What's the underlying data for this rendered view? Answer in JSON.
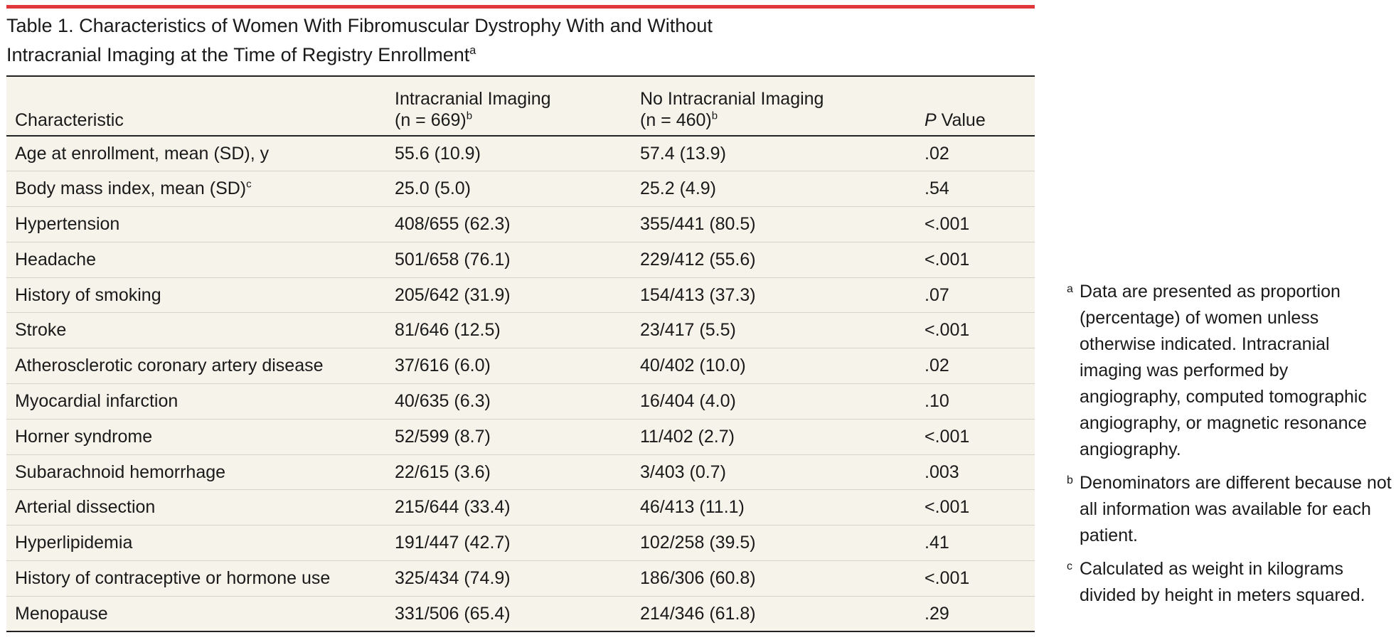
{
  "title": {
    "lines": [
      "Table 1. Characteristics of Women With Fibromuscular Dystrophy With and Without",
      "Intracranial Imaging at the Time of Registry Enrollment"
    ],
    "note": "a"
  },
  "table": {
    "header": {
      "characteristic": "Characteristic",
      "imaging": {
        "lines": [
          "Intracranial Imaging",
          "(n = 669)"
        ],
        "note": "b"
      },
      "no_imaging": {
        "lines": [
          "No Intracranial Imaging",
          "(n = 460)"
        ],
        "note": "b"
      },
      "p_value": {
        "italic": "P",
        "rest": " Value"
      }
    },
    "rows": [
      {
        "cells": [
          "Age at enrollment, mean (SD), y",
          "55.6 (10.9)",
          "57.4 (13.9)",
          ".02"
        ]
      },
      {
        "cells": [
          "Body mass index, mean (SD)",
          "25.0 (5.0)",
          "25.2 (4.9)",
          ".54"
        ],
        "note": "c"
      },
      {
        "cells": [
          "Hypertension",
          "408/655 (62.3)",
          "355/441 (80.5)",
          "<.001"
        ]
      },
      {
        "cells": [
          "Headache",
          "501/658 (76.1)",
          "229/412 (55.6)",
          "<.001"
        ]
      },
      {
        "cells": [
          "History of smoking",
          "205/642 (31.9)",
          "154/413 (37.3)",
          ".07"
        ]
      },
      {
        "cells": [
          "Stroke",
          "81/646 (12.5)",
          "23/417 (5.5)",
          "<.001"
        ]
      },
      {
        "cells": [
          "Atherosclerotic coronary artery disease",
          "37/616 (6.0)",
          "40/402 (10.0)",
          ".02"
        ]
      },
      {
        "cells": [
          "Myocardial infarction",
          "40/635 (6.3)",
          "16/404 (4.0)",
          ".10"
        ]
      },
      {
        "cells": [
          "Horner syndrome",
          "52/599 (8.7)",
          "11/402 (2.7)",
          "<.001"
        ]
      },
      {
        "cells": [
          "Subarachnoid hemorrhage",
          "22/615 (3.6)",
          "3/403 (0.7)",
          ".003"
        ]
      },
      {
        "cells": [
          "Arterial dissection",
          "215/644 (33.4)",
          "46/413 (11.1)",
          "<.001"
        ]
      },
      {
        "cells": [
          "Hyperlipidemia",
          "191/447 (42.7)",
          "102/258 (39.5)",
          ".41"
        ]
      },
      {
        "cells": [
          "History of contraceptive or hormone use",
          "325/434 (74.9)",
          "186/306 (60.8)",
          "<.001"
        ]
      },
      {
        "cells": [
          "Menopause",
          "331/506 (65.4)",
          "214/346 (61.8)",
          ".29"
        ]
      }
    ]
  },
  "footnotes": [
    {
      "mark": "a",
      "text": "Data are presented as proportion (percentage) of women unless otherwise indicated. Intracranial imaging was performed by angiography, computed tomographic angiography, or magnetic resonance angiography."
    },
    {
      "mark": "b",
      "text": "Denominators are different because not all information was available for each patient."
    },
    {
      "mark": "c",
      "text": "Calculated as weight in kilograms divided by height in meters squared."
    }
  ]
}
